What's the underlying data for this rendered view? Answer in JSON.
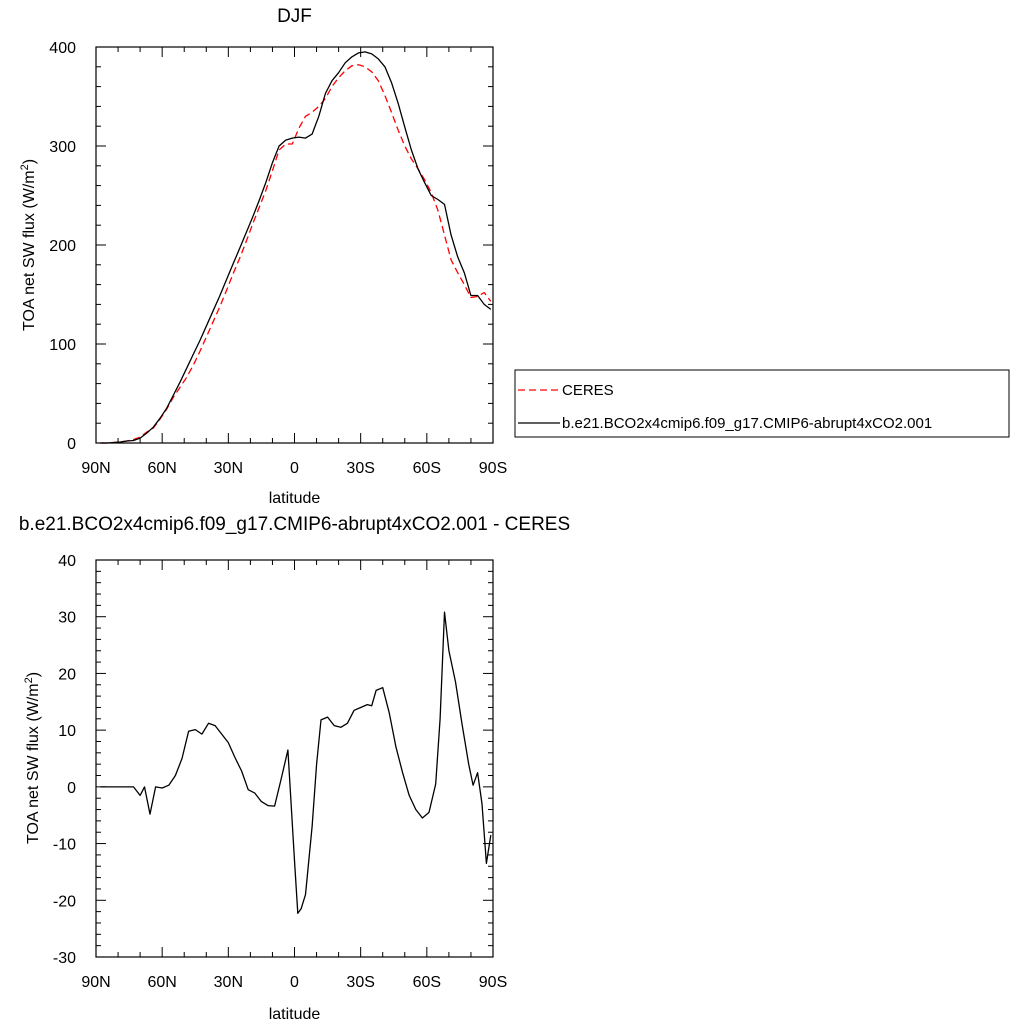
{
  "chart_data": [
    {
      "type": "line",
      "title": "DJF",
      "xlabel": "latitude",
      "ylabel": "TOA net SW flux (W/m",
      "ylabel_sup": "2",
      "ylabel_close": ")",
      "xlim": [
        90,
        -90
      ],
      "ylim": [
        0,
        400
      ],
      "x_ticks": [
        90,
        60,
        30,
        0,
        -30,
        -60,
        -90
      ],
      "x_tick_labels": [
        "90N",
        "60N",
        "30N",
        "0",
        "30S",
        "60S",
        "90S"
      ],
      "y_ticks": [
        0,
        100,
        200,
        300,
        400
      ],
      "y_tick_labels": [
        "0",
        "100",
        "200",
        "300",
        "400"
      ],
      "legend_position": "right",
      "series": [
        {
          "name": "CERES",
          "color": "#ff0000",
          "dash": "dashed",
          "points": [
            [
              88,
              0
            ],
            [
              85,
              0
            ],
            [
              82,
              0.5
            ],
            [
              79,
              1
            ],
            [
              76,
              2
            ],
            [
              73,
              3.5
            ],
            [
              70,
              6
            ],
            [
              67,
              11
            ],
            [
              64,
              15
            ],
            [
              61,
              24
            ],
            [
              58,
              34
            ],
            [
              55,
              46
            ],
            [
              52,
              56
            ],
            [
              49,
              66
            ],
            [
              46,
              78
            ],
            [
              43,
              92
            ],
            [
              40,
              107
            ],
            [
              37,
              122
            ],
            [
              34,
              137
            ],
            [
              31,
              153
            ],
            [
              28,
              170
            ],
            [
              25,
              186
            ],
            [
              22,
              203
            ],
            [
              19,
              221
            ],
            [
              16,
              238
            ],
            [
              13,
              255
            ],
            [
              10,
              275
            ],
            [
              7,
              296
            ],
            [
              4,
              302
            ],
            [
              1,
              302
            ],
            [
              -2,
              318
            ],
            [
              -5,
              330
            ],
            [
              -8,
              334
            ],
            [
              -11,
              340
            ],
            [
              -14,
              348
            ],
            [
              -17,
              360
            ],
            [
              -20,
              369
            ],
            [
              -23,
              376
            ],
            [
              -26,
              381
            ],
            [
              -29,
              382
            ],
            [
              -32,
              380
            ],
            [
              -35,
              375
            ],
            [
              -38,
              366
            ],
            [
              -41,
              351
            ],
            [
              -44,
              334
            ],
            [
              -47,
              316
            ],
            [
              -50,
              300
            ],
            [
              -53,
              287
            ],
            [
              -56,
              277
            ],
            [
              -59,
              266
            ],
            [
              -62,
              253
            ],
            [
              -65,
              235
            ],
            [
              -68,
              210
            ],
            [
              -71,
              185
            ],
            [
              -74,
              172
            ],
            [
              -77,
              160
            ],
            [
              -80,
              147
            ],
            [
              -83,
              148
            ],
            [
              -86,
              152
            ],
            [
              -89,
              143
            ]
          ]
        },
        {
          "name": "b.e21.BCO2x4cmip6.f09_g17.CMIP6-abrupt4xCO2.001",
          "color": "#000000",
          "dash": "solid",
          "points": [
            [
              88,
              0
            ],
            [
              85,
              0
            ],
            [
              82,
              0.5
            ],
            [
              79,
              1
            ],
            [
              76,
              2
            ],
            [
              73,
              2.5
            ],
            [
              70,
              5
            ],
            [
              67,
              10
            ],
            [
              64,
              16
            ],
            [
              61,
              25
            ],
            [
              58,
              35
            ],
            [
              55,
              48
            ],
            [
              52,
              61
            ],
            [
              49,
              75
            ],
            [
              46,
              89
            ],
            [
              43,
              103
            ],
            [
              40,
              118
            ],
            [
              37,
              133
            ],
            [
              34,
              148
            ],
            [
              31,
              164
            ],
            [
              28,
              180
            ],
            [
              25,
              196
            ],
            [
              22,
              212
            ],
            [
              19,
              228
            ],
            [
              16,
              245
            ],
            [
              13,
              263
            ],
            [
              10,
              283
            ],
            [
              7,
              300
            ],
            [
              4,
              306
            ],
            [
              1,
              308
            ],
            [
              -2,
              309
            ],
            [
              -5,
              308
            ],
            [
              -8,
              312
            ],
            [
              -11,
              330
            ],
            [
              -14,
              353
            ],
            [
              -17,
              366
            ],
            [
              -20,
              374
            ],
            [
              -23,
              384
            ],
            [
              -26,
              390
            ],
            [
              -29,
              394
            ],
            [
              -32,
              395
            ],
            [
              -35,
              393
            ],
            [
              -38,
              388
            ],
            [
              -41,
              380
            ],
            [
              -44,
              364
            ],
            [
              -47,
              343
            ],
            [
              -50,
              319
            ],
            [
              -53,
              296
            ],
            [
              -56,
              277
            ],
            [
              -59,
              263
            ],
            [
              -62,
              250
            ],
            [
              -65,
              246
            ],
            [
              -68,
              241
            ],
            [
              -71,
              210
            ],
            [
              -74,
              188
            ],
            [
              -77,
              172
            ],
            [
              -80,
              149
            ],
            [
              -83,
              149
            ],
            [
              -86,
              140
            ],
            [
              -89,
              135
            ]
          ]
        }
      ]
    },
    {
      "type": "line",
      "title": "b.e21.BCO2x4cmip6.f09_g17.CMIP6-abrupt4xCO2.001 - CERES",
      "xlabel": "latitude",
      "ylabel": "TOA net SW flux (W/m",
      "ylabel_sup": "2",
      "ylabel_close": ")",
      "xlim": [
        90,
        -90
      ],
      "ylim": [
        -30,
        40
      ],
      "x_ticks": [
        90,
        60,
        30,
        0,
        -30,
        -60,
        -90
      ],
      "x_tick_labels": [
        "90N",
        "60N",
        "30N",
        "0",
        "30S",
        "60S",
        "90S"
      ],
      "y_ticks": [
        -30,
        -20,
        -10,
        0,
        10,
        20,
        30,
        40
      ],
      "y_tick_labels": [
        "-30",
        "-20",
        "-10",
        "0",
        "10",
        "20",
        "30",
        "40"
      ],
      "series": [
        {
          "color": "#000000",
          "dash": "solid",
          "points": [
            [
              88,
              0
            ],
            [
              85,
              0
            ],
            [
              82,
              0
            ],
            [
              79,
              0
            ],
            [
              76,
              0
            ],
            [
              73,
              0
            ],
            [
              70,
              -1.5
            ],
            [
              68,
              0
            ],
            [
              65.5,
              -4.8
            ],
            [
              63,
              0
            ],
            [
              60,
              -0.2
            ],
            [
              57,
              0.3
            ],
            [
              54,
              2
            ],
            [
              51,
              5
            ],
            [
              48,
              9.8
            ],
            [
              45,
              10.1
            ],
            [
              42,
              9.3
            ],
            [
              39,
              11.2
            ],
            [
              36,
              10.8
            ],
            [
              33,
              9.3
            ],
            [
              30,
              7.8
            ],
            [
              27,
              5.2
            ],
            [
              24,
              2.8
            ],
            [
              21,
              -0.5
            ],
            [
              18,
              -1.1
            ],
            [
              15,
              -2.6
            ],
            [
              12,
              -3.3
            ],
            [
              9,
              -3.4
            ],
            [
              6,
              1.5
            ],
            [
              3,
              6.5
            ],
            [
              0,
              -13
            ],
            [
              -1.5,
              -22.3
            ],
            [
              -3,
              -21.5
            ],
            [
              -5,
              -19
            ],
            [
              -8,
              -7
            ],
            [
              -10,
              4
            ],
            [
              -12,
              11.8
            ],
            [
              -15,
              12.3
            ],
            [
              -18,
              10.8
            ],
            [
              -21,
              10.5
            ],
            [
              -24,
              11.2
            ],
            [
              -27,
              13.5
            ],
            [
              -30,
              14
            ],
            [
              -33,
              14.5
            ],
            [
              -35,
              14.3
            ],
            [
              -37,
              17
            ],
            [
              -40,
              17.5
            ],
            [
              -43,
              13
            ],
            [
              -46,
              7
            ],
            [
              -49,
              2.5
            ],
            [
              -52,
              -1.5
            ],
            [
              -55,
              -4
            ],
            [
              -58,
              -5.5
            ],
            [
              -61,
              -4.5
            ],
            [
              -64,
              0.5
            ],
            [
              -66,
              12
            ],
            [
              -68,
              30.8
            ],
            [
              -70,
              24
            ],
            [
              -73,
              18.5
            ],
            [
              -76,
              11
            ],
            [
              -79,
              4
            ],
            [
              -81,
              0.3
            ],
            [
              -83,
              2.5
            ],
            [
              -85,
              -3
            ],
            [
              -87,
              -13.5
            ],
            [
              -89,
              -8.5
            ]
          ]
        }
      ]
    }
  ]
}
